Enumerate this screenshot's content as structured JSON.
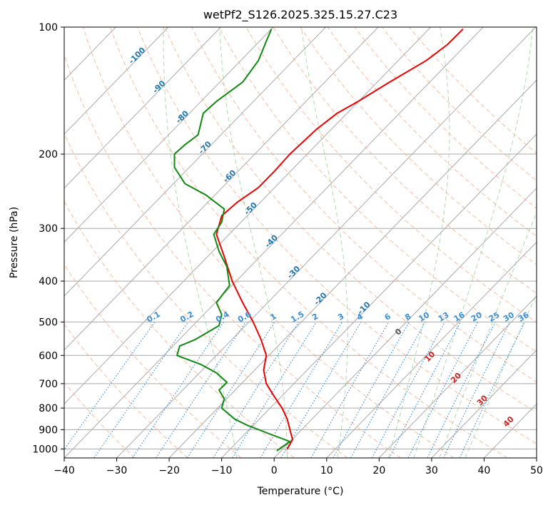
{
  "chart_data": {
    "type": "line",
    "title": "wetPf2_S126.2025.325.15.27.C23",
    "xlabel": "Temperature (°C)",
    "ylabel": "Pressure (hPa)",
    "xlim": [
      -40,
      50
    ],
    "ylim": [
      1050,
      100
    ],
    "y_scale": "log",
    "grid": true,
    "x_ticks": [
      -40,
      -30,
      -20,
      -10,
      0,
      10,
      20,
      30,
      40,
      50
    ],
    "y_ticks": [
      100,
      200,
      300,
      400,
      500,
      600,
      700,
      800,
      900,
      1000
    ],
    "series": [
      {
        "name": "",
        "color": "#ee0000",
        "points": [
          [
            2.5,
            1000
          ],
          [
            3.5,
            950
          ],
          [
            3.0,
            900
          ],
          [
            2.5,
            850
          ],
          [
            1.5,
            800
          ],
          [
            0.0,
            750
          ],
          [
            -1.5,
            700
          ],
          [
            -2.0,
            650
          ],
          [
            -1.5,
            600
          ],
          [
            -2.5,
            550
          ],
          [
            -4.0,
            500
          ],
          [
            -6.0,
            450
          ],
          [
            -8.0,
            400
          ],
          [
            -9.5,
            350
          ],
          [
            -11.0,
            310
          ],
          [
            -10.0,
            280
          ],
          [
            -7.0,
            260
          ],
          [
            -3.0,
            240
          ],
          [
            0.0,
            220
          ],
          [
            3.0,
            200
          ],
          [
            8.0,
            175
          ],
          [
            12.0,
            160
          ],
          [
            16.0,
            150
          ],
          [
            22.0,
            135
          ],
          [
            29.0,
            120
          ],
          [
            33.0,
            110
          ],
          [
            36.0,
            101
          ]
        ]
      },
      {
        "name": "",
        "color": "#118811",
        "points": [
          [
            0.5,
            1010
          ],
          [
            3.0,
            960
          ],
          [
            -1.0,
            920
          ],
          [
            -5.0,
            880
          ],
          [
            -7.5,
            850
          ],
          [
            -10.0,
            800
          ],
          [
            -9.5,
            760
          ],
          [
            -10.5,
            725
          ],
          [
            -9.0,
            695
          ],
          [
            -11.0,
            660
          ],
          [
            -14.0,
            630
          ],
          [
            -18.5,
            600
          ],
          [
            -18.0,
            570
          ],
          [
            -15.0,
            550
          ],
          [
            -10.5,
            510
          ],
          [
            -10.0,
            480
          ],
          [
            -11.0,
            450
          ],
          [
            -8.5,
            410
          ],
          [
            -9.0,
            370
          ],
          [
            -10.5,
            340
          ],
          [
            -11.5,
            310
          ],
          [
            -10.0,
            290
          ],
          [
            -9.5,
            270
          ],
          [
            -13.0,
            250
          ],
          [
            -17.0,
            235
          ],
          [
            -19.0,
            215
          ],
          [
            -19.0,
            200
          ],
          [
            -17.0,
            190
          ],
          [
            -14.5,
            180
          ],
          [
            -13.5,
            160
          ],
          [
            -11.0,
            150
          ],
          [
            -6.0,
            135
          ],
          [
            -3.0,
            120
          ],
          [
            -1.5,
            108
          ],
          [
            -0.5,
            101
          ]
        ]
      }
    ],
    "dry_adiabats_theta_C": [
      -30,
      -20,
      -10,
      0,
      10,
      20,
      30,
      40,
      50,
      60,
      70,
      80,
      90,
      100,
      110,
      120,
      130,
      140,
      150
    ],
    "moist_adiabats_C": [
      -10,
      0,
      10,
      20,
      25,
      30,
      35
    ],
    "isotherm_labels": [
      "-100",
      "-90",
      "-80",
      "-70",
      "-60",
      "-50",
      "-40",
      "-30",
      "-20",
      "-10"
    ],
    "mixing_ratio_labels": [
      "0.1",
      "0.2",
      "0.4",
      "0.6",
      "1",
      "1.5",
      "2",
      "3",
      "4",
      "6",
      "8",
      "10",
      "13",
      "16",
      "20",
      "25",
      "30",
      "36"
    ],
    "theta_e_labels": [
      "0",
      "10",
      "20",
      "30",
      "40"
    ]
  }
}
